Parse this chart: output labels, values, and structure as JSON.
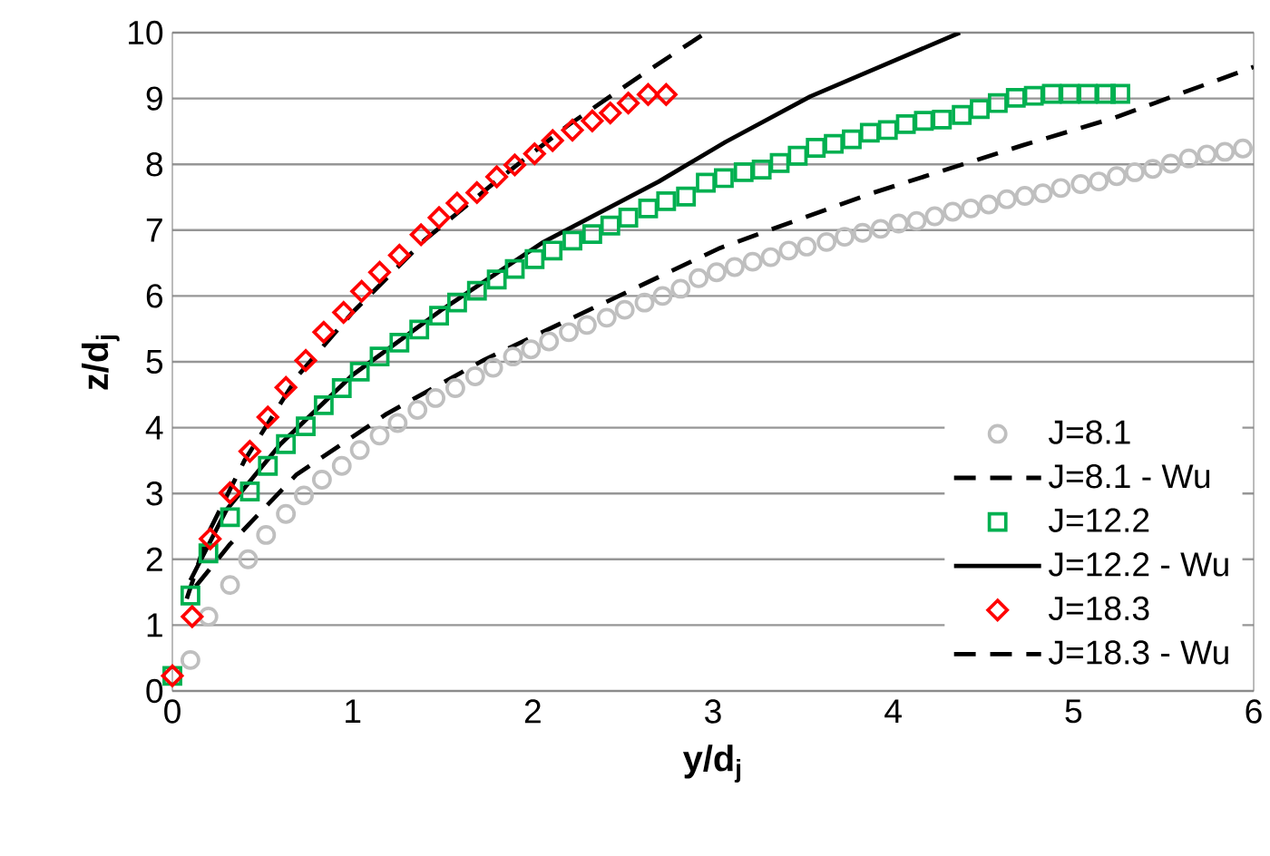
{
  "chart_data": {
    "type": "scatter",
    "xlabel": "y/d$_{j}$",
    "ylabel": "z/d$_{j}$",
    "xlim": [
      0,
      6
    ],
    "ylim": [
      0,
      10
    ],
    "xticks": [
      0,
      1,
      2,
      3,
      4,
      5,
      6
    ],
    "yticks": [
      0,
      1,
      2,
      3,
      4,
      5,
      6,
      7,
      8,
      9,
      10
    ],
    "grid": "y",
    "legend": "bottom right",
    "series": [
      {
        "name": "J=8.1",
        "marker": "circle",
        "color": "#bfbfbf",
        "x": [
          0.1,
          0.2,
          0.32,
          0.42,
          0.52,
          0.63,
          0.73,
          0.83,
          0.94,
          1.04,
          1.15,
          1.25,
          1.36,
          1.46,
          1.57,
          1.68,
          1.78,
          1.89,
          1.99,
          2.09,
          2.2,
          2.3,
          2.41,
          2.51,
          2.62,
          2.72,
          2.82,
          2.92,
          3.02,
          3.12,
          3.22,
          3.32,
          3.42,
          3.52,
          3.63,
          3.73,
          3.83,
          3.93,
          4.03,
          4.13,
          4.23,
          4.33,
          4.43,
          4.53,
          4.63,
          4.73,
          4.83,
          4.93,
          5.04,
          5.14,
          5.24,
          5.34,
          5.44,
          5.54,
          5.64,
          5.74,
          5.84,
          5.94
        ],
        "values": [
          0.47,
          1.13,
          1.61,
          2.0,
          2.37,
          2.69,
          2.97,
          3.21,
          3.42,
          3.66,
          3.88,
          4.07,
          4.27,
          4.45,
          4.6,
          4.78,
          4.91,
          5.08,
          5.19,
          5.31,
          5.45,
          5.56,
          5.67,
          5.79,
          5.9,
          6.0,
          6.11,
          6.27,
          6.36,
          6.44,
          6.52,
          6.59,
          6.69,
          6.75,
          6.82,
          6.9,
          6.96,
          7.02,
          7.1,
          7.14,
          7.21,
          7.28,
          7.33,
          7.39,
          7.47,
          7.52,
          7.56,
          7.64,
          7.7,
          7.74,
          7.82,
          7.88,
          7.93,
          8.01,
          8.09,
          8.15,
          8.19,
          8.24
        ]
      },
      {
        "name": "J=8.1 - Wu",
        "type": "line",
        "line_style": "dashed",
        "color": "#000000",
        "x": [
          0.13,
          0.32,
          0.69,
          1.19,
          1.73,
          2.33,
          3.04,
          3.88,
          4.72,
          5.22,
          6.0
        ],
        "values": [
          1.59,
          2.23,
          3.29,
          4.21,
          5.03,
          5.81,
          6.73,
          7.56,
          8.29,
          8.7,
          9.48
        ]
      },
      {
        "name": "J=12.2",
        "marker": "square",
        "color": "#00b050",
        "x": [
          0,
          0.1,
          0.2,
          0.32,
          0.43,
          0.53,
          0.63,
          0.74,
          0.84,
          0.94,
          1.04,
          1.15,
          1.26,
          1.37,
          1.48,
          1.58,
          1.69,
          1.8,
          1.9,
          2.01,
          2.11,
          2.22,
          2.33,
          2.43,
          2.53,
          2.64,
          2.74,
          2.85,
          2.96,
          3.06,
          3.17,
          3.27,
          3.37,
          3.47,
          3.57,
          3.67,
          3.77,
          3.87,
          3.97,
          4.07,
          4.17,
          4.27,
          4.38,
          4.48,
          4.58,
          4.68,
          4.78,
          4.88,
          4.98,
          5.08,
          5.18,
          5.26
        ],
        "values": [
          0.23,
          1.45,
          2.09,
          2.64,
          3.03,
          3.42,
          3.75,
          4.02,
          4.34,
          4.6,
          4.85,
          5.08,
          5.29,
          5.49,
          5.7,
          5.9,
          6.08,
          6.25,
          6.41,
          6.56,
          6.69,
          6.84,
          6.94,
          7.07,
          7.19,
          7.33,
          7.44,
          7.51,
          7.72,
          7.79,
          7.88,
          7.92,
          8.02,
          8.13,
          8.25,
          8.31,
          8.38,
          8.48,
          8.52,
          8.61,
          8.66,
          8.68,
          8.75,
          8.84,
          8.93,
          9.01,
          9.04,
          9.07,
          9.07,
          9.07,
          9.07,
          9.07
        ]
      },
      {
        "name": "J=12.2 - Wu",
        "type": "line",
        "line_style": "solid",
        "color": "#000000",
        "x": [
          0.1,
          0.3,
          0.6,
          1.0,
          1.5,
          2.06,
          2.7,
          3.07,
          3.54,
          4.37
        ],
        "values": [
          1.68,
          2.75,
          3.75,
          4.8,
          5.8,
          6.82,
          7.74,
          8.34,
          9.03,
          10
        ]
      },
      {
        "name": "J=18.3",
        "marker": "diamond",
        "color": "#ff0000",
        "x": [
          0,
          0.11,
          0.21,
          0.32,
          0.43,
          0.53,
          0.63,
          0.74,
          0.84,
          0.95,
          1.05,
          1.15,
          1.26,
          1.38,
          1.48,
          1.58,
          1.69,
          1.8,
          1.9,
          2.01,
          2.11,
          2.22,
          2.33,
          2.43,
          2.53,
          2.64,
          2.74
        ],
        "values": [
          0.23,
          1.13,
          2.31,
          3.01,
          3.64,
          4.16,
          4.61,
          5.02,
          5.45,
          5.75,
          6.07,
          6.36,
          6.62,
          6.93,
          7.19,
          7.41,
          7.57,
          7.81,
          7.99,
          8.16,
          8.36,
          8.52,
          8.66,
          8.78,
          8.93,
          9.06,
          9.06
        ]
      },
      {
        "name": "J=18.3 - Wu",
        "type": "line",
        "line_style": "dashed",
        "color": "#000000",
        "x": [
          0.08,
          0.2,
          0.4,
          0.7,
          1.0,
          1.4,
          1.8,
          2.2,
          2.6,
          2.96
        ],
        "values": [
          1.4,
          2.4,
          3.5,
          4.8,
          5.75,
          6.85,
          7.75,
          8.6,
          9.35,
          10
        ]
      }
    ]
  }
}
